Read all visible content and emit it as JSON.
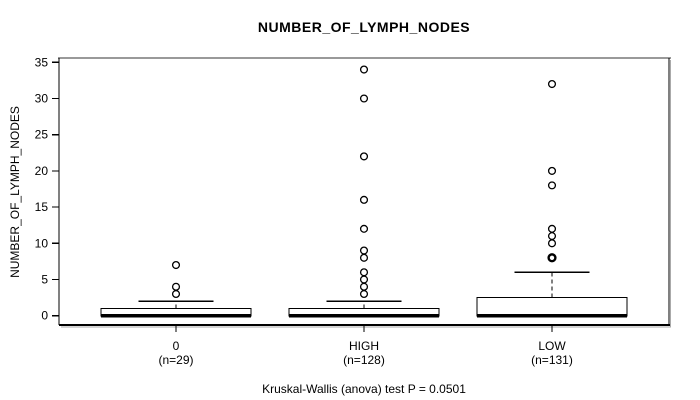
{
  "title": "NUMBER_OF_LYMPH_NODES",
  "footer": "Kruskal-Wallis (anova) test P = 0.0501",
  "colors": {
    "box_fill": "#ffffff",
    "stroke": "#000000",
    "frame_top": "#999999",
    "frame_shadow": "#aaaaaa",
    "background": "#ffffff"
  },
  "chart_data": {
    "type": "boxplot",
    "title": "NUMBER_OF_LYMPH_NODES",
    "ylabel": "NUMBER_OF_LYMPH_NODES",
    "xlabel": "",
    "ylim": [
      0,
      35
    ],
    "yticks": [
      0,
      5,
      10,
      15,
      20,
      25,
      30,
      35
    ],
    "grid": false,
    "legend": "none",
    "annotation": "Kruskal-Wallis (anova) test P = 0.0501",
    "groups": [
      {
        "label": "0",
        "sublabel": "(n=29)",
        "n": 29,
        "q1": 0,
        "median": 0,
        "q3": 1,
        "whisker_low": 0,
        "whisker_high": 2,
        "outliers": [
          3,
          4,
          7
        ]
      },
      {
        "label": "HIGH",
        "sublabel": "(n=128)",
        "n": 128,
        "q1": 0,
        "median": 0,
        "q3": 1,
        "whisker_low": 0,
        "whisker_high": 2,
        "outliers": [
          3,
          4,
          5,
          6,
          8,
          9,
          12,
          16,
          22,
          30,
          34
        ]
      },
      {
        "label": "LOW",
        "sublabel": "(n=131)",
        "n": 131,
        "q1": 0,
        "median": 0,
        "q3": 2.5,
        "whisker_low": 0,
        "whisker_high": 6,
        "outliers": [
          8,
          8,
          10,
          11,
          12,
          18,
          20,
          32
        ]
      }
    ]
  }
}
